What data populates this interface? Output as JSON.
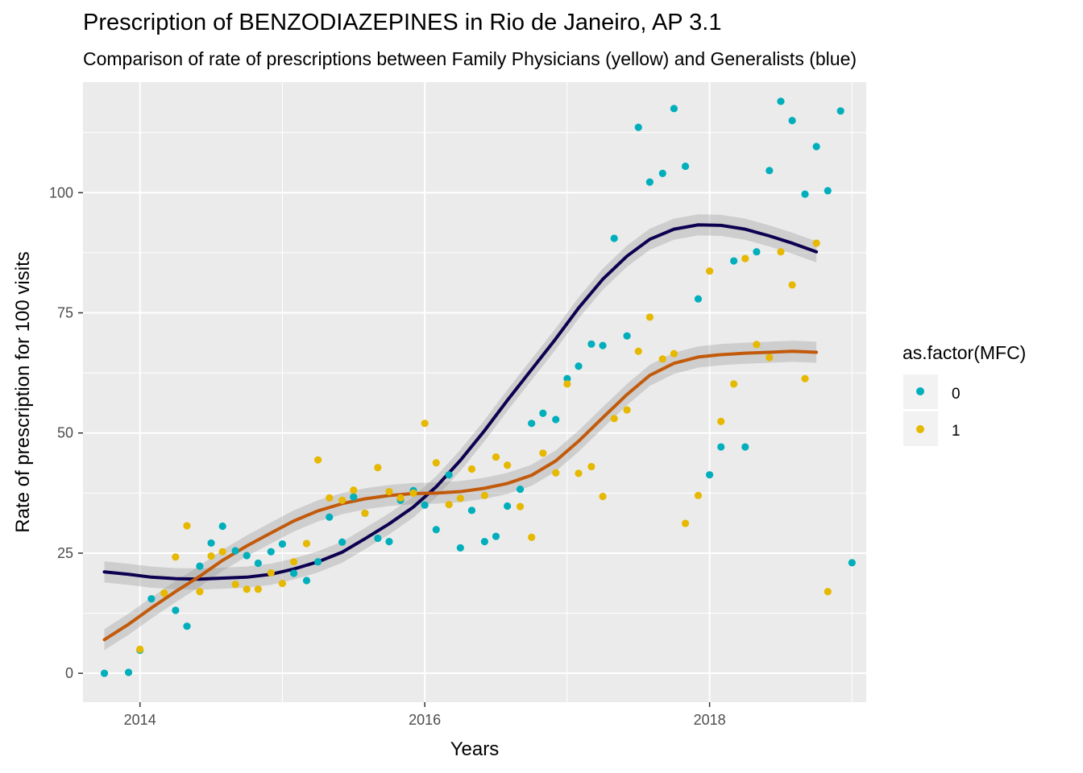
{
  "title": "Prescription of BENZODIAZEPINES in Rio de Janeiro, AP 3.1",
  "subtitle": "Comparison of rate of prescriptions between Family Physicians (yellow) and Generalists (blue)",
  "chart_data": {
    "type": "scatter",
    "title": "Prescription of BENZODIAZEPINES in Rio de Janeiro, AP 3.1",
    "subtitle": "Comparison of rate of prescriptions between Family Physicians (yellow) and Generalists (blue)",
    "xlabel": "Years",
    "ylabel": "Rate of prescription for 100 visits",
    "xlim": [
      2013.6,
      2019.1
    ],
    "ylim": [
      -6,
      123
    ],
    "x_ticks": [
      2014,
      2016,
      2018
    ],
    "y_ticks": [
      0,
      25,
      50,
      75,
      100
    ],
    "grid": true,
    "legend": {
      "title": "as.factor(MFC)",
      "position": "right",
      "entries": [
        {
          "label": "0",
          "color": "#00AFBB"
        },
        {
          "label": "1",
          "color": "#E7B800"
        }
      ]
    },
    "series": [
      {
        "name": "0",
        "color": "#00AFBB",
        "points": [
          [
            2013.75,
            0
          ],
          [
            2013.92,
            0.2
          ],
          [
            2014.0,
            4.8
          ],
          [
            2014.08,
            15.5
          ],
          [
            2014.25,
            13.1
          ],
          [
            2014.33,
            9.8
          ],
          [
            2014.42,
            22.3
          ],
          [
            2014.5,
            27.1
          ],
          [
            2014.58,
            30.6
          ],
          [
            2014.67,
            25.5
          ],
          [
            2014.75,
            24.5
          ],
          [
            2014.83,
            22.9
          ],
          [
            2014.92,
            25.3
          ],
          [
            2015.0,
            26.9
          ],
          [
            2015.08,
            20.8
          ],
          [
            2015.17,
            19.3
          ],
          [
            2015.25,
            23.2
          ],
          [
            2015.33,
            32.5
          ],
          [
            2015.42,
            27.3
          ],
          [
            2015.5,
            36.7
          ],
          [
            2015.58,
            33.3
          ],
          [
            2015.67,
            28.1
          ],
          [
            2015.75,
            27.4
          ],
          [
            2015.83,
            36.0
          ],
          [
            2015.92,
            38.0
          ],
          [
            2016.0,
            35.0
          ],
          [
            2016.08,
            29.9
          ],
          [
            2016.17,
            41.3
          ],
          [
            2016.25,
            26.1
          ],
          [
            2016.33,
            33.9
          ],
          [
            2016.42,
            27.4
          ],
          [
            2016.5,
            28.5
          ],
          [
            2016.58,
            34.8
          ],
          [
            2016.67,
            38.3
          ],
          [
            2016.75,
            52.0
          ],
          [
            2016.83,
            54.1
          ],
          [
            2016.92,
            52.8
          ],
          [
            2017.0,
            61.3
          ],
          [
            2017.08,
            63.9
          ],
          [
            2017.17,
            68.5
          ],
          [
            2017.25,
            68.2
          ],
          [
            2017.33,
            90.5
          ],
          [
            2017.42,
            70.2
          ],
          [
            2017.5,
            113.6
          ],
          [
            2017.58,
            102.2
          ],
          [
            2017.67,
            104.0
          ],
          [
            2017.75,
            117.5
          ],
          [
            2017.83,
            105.5
          ],
          [
            2017.92,
            77.9
          ],
          [
            2018.0,
            41.3
          ],
          [
            2018.08,
            47.1
          ],
          [
            2018.17,
            85.8
          ],
          [
            2018.25,
            47.1
          ],
          [
            2018.33,
            87.7
          ],
          [
            2018.42,
            104.6
          ],
          [
            2018.5,
            119.0
          ],
          [
            2018.58,
            115.0
          ],
          [
            2018.67,
            99.7
          ],
          [
            2018.75,
            109.6
          ],
          [
            2018.83,
            100.4
          ],
          [
            2018.92,
            117.0
          ],
          [
            2019.0,
            23.0
          ]
        ],
        "smooth": [
          [
            2013.75,
            21.1
          ],
          [
            2013.92,
            20.6
          ],
          [
            2014.08,
            20.0
          ],
          [
            2014.25,
            19.7
          ],
          [
            2014.42,
            19.6
          ],
          [
            2014.58,
            19.8
          ],
          [
            2014.75,
            20.0
          ],
          [
            2014.92,
            20.6
          ],
          [
            2015.08,
            21.7
          ],
          [
            2015.25,
            23.2
          ],
          [
            2015.42,
            25.2
          ],
          [
            2015.58,
            28.0
          ],
          [
            2015.75,
            31.1
          ],
          [
            2015.92,
            34.6
          ],
          [
            2016.08,
            38.8
          ],
          [
            2016.25,
            44.3
          ],
          [
            2016.42,
            50.5
          ],
          [
            2016.58,
            56.8
          ],
          [
            2016.75,
            63.2
          ],
          [
            2016.92,
            69.6
          ],
          [
            2017.08,
            76.0
          ],
          [
            2017.25,
            82.0
          ],
          [
            2017.42,
            86.8
          ],
          [
            2017.58,
            90.3
          ],
          [
            2017.75,
            92.4
          ],
          [
            2017.92,
            93.3
          ],
          [
            2018.08,
            93.2
          ],
          [
            2018.25,
            92.4
          ],
          [
            2018.42,
            91.0
          ],
          [
            2018.58,
            89.5
          ],
          [
            2018.75,
            87.7
          ]
        ]
      },
      {
        "name": "1",
        "color": "#E7B800",
        "points": [
          [
            2014.0,
            5.0
          ],
          [
            2014.17,
            16.7
          ],
          [
            2014.25,
            24.2
          ],
          [
            2014.33,
            30.7
          ],
          [
            2014.42,
            17.0
          ],
          [
            2014.5,
            24.4
          ],
          [
            2014.58,
            25.3
          ],
          [
            2014.67,
            18.5
          ],
          [
            2014.75,
            17.5
          ],
          [
            2014.83,
            17.5
          ],
          [
            2014.92,
            20.9
          ],
          [
            2015.0,
            18.7
          ],
          [
            2015.08,
            23.2
          ],
          [
            2015.17,
            27.0
          ],
          [
            2015.25,
            44.4
          ],
          [
            2015.33,
            36.5
          ],
          [
            2015.42,
            36.0
          ],
          [
            2015.5,
            38.1
          ],
          [
            2015.58,
            33.3
          ],
          [
            2015.67,
            42.8
          ],
          [
            2015.75,
            37.8
          ],
          [
            2015.83,
            36.5
          ],
          [
            2015.92,
            37.5
          ],
          [
            2016.0,
            52.0
          ],
          [
            2016.08,
            43.8
          ],
          [
            2016.17,
            35.1
          ],
          [
            2016.25,
            36.4
          ],
          [
            2016.33,
            42.5
          ],
          [
            2016.42,
            37.0
          ],
          [
            2016.5,
            45.0
          ],
          [
            2016.58,
            43.3
          ],
          [
            2016.67,
            34.7
          ],
          [
            2016.75,
            28.3
          ],
          [
            2016.83,
            45.8
          ],
          [
            2016.92,
            41.7
          ],
          [
            2017.0,
            60.2
          ],
          [
            2017.08,
            41.6
          ],
          [
            2017.17,
            43.0
          ],
          [
            2017.25,
            36.8
          ],
          [
            2017.33,
            53.0
          ],
          [
            2017.42,
            54.8
          ],
          [
            2017.5,
            67.0
          ],
          [
            2017.58,
            74.1
          ],
          [
            2017.67,
            65.4
          ],
          [
            2017.75,
            66.5
          ],
          [
            2017.83,
            31.2
          ],
          [
            2017.92,
            37.0
          ],
          [
            2018.0,
            83.7
          ],
          [
            2018.08,
            52.4
          ],
          [
            2018.17,
            60.2
          ],
          [
            2018.25,
            86.3
          ],
          [
            2018.33,
            68.4
          ],
          [
            2018.42,
            65.7
          ],
          [
            2018.5,
            87.7
          ],
          [
            2018.58,
            80.8
          ],
          [
            2018.67,
            61.3
          ],
          [
            2018.75,
            89.5
          ],
          [
            2018.83,
            17.0
          ]
        ],
        "smooth": [
          [
            2013.75,
            7.0
          ],
          [
            2013.92,
            10.2
          ],
          [
            2014.08,
            13.6
          ],
          [
            2014.25,
            17.0
          ],
          [
            2014.42,
            20.2
          ],
          [
            2014.58,
            23.5
          ],
          [
            2014.75,
            26.5
          ],
          [
            2014.92,
            29.2
          ],
          [
            2015.08,
            31.7
          ],
          [
            2015.25,
            33.8
          ],
          [
            2015.42,
            35.3
          ],
          [
            2015.58,
            36.3
          ],
          [
            2015.75,
            37.0
          ],
          [
            2015.92,
            37.4
          ],
          [
            2016.08,
            37.5
          ],
          [
            2016.25,
            37.8
          ],
          [
            2016.42,
            38.5
          ],
          [
            2016.58,
            39.5
          ],
          [
            2016.75,
            41.2
          ],
          [
            2016.92,
            44.2
          ],
          [
            2017.08,
            48.3
          ],
          [
            2017.25,
            53.2
          ],
          [
            2017.42,
            58.0
          ],
          [
            2017.58,
            62.0
          ],
          [
            2017.75,
            64.5
          ],
          [
            2017.92,
            65.8
          ],
          [
            2018.08,
            66.3
          ],
          [
            2018.25,
            66.6
          ],
          [
            2018.42,
            66.8
          ],
          [
            2018.58,
            67.0
          ],
          [
            2018.75,
            66.8
          ]
        ]
      }
    ]
  }
}
